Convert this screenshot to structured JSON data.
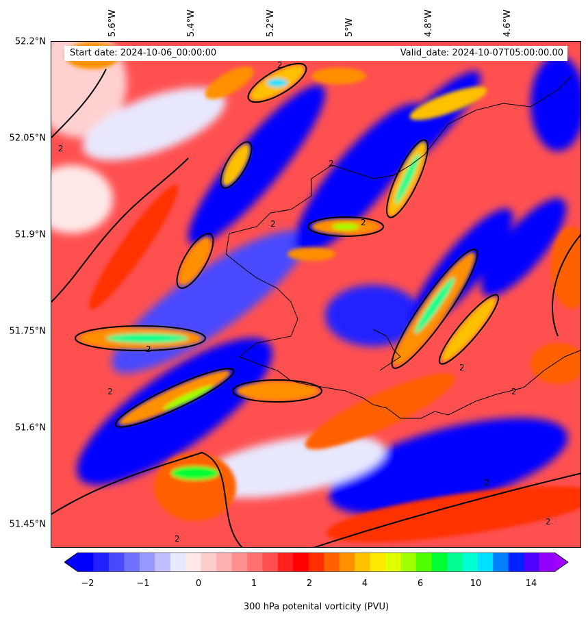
{
  "map": {
    "start_label": "Start date: 2024-10-06_00:00:00",
    "valid_label": "Valid_date: 2024-10-07T05:00:00.00",
    "latitude_labels": [
      "52.2°N",
      "52.05°N",
      "51.9°N",
      "51.75°N",
      "51.6°N",
      "51.45°N"
    ],
    "longitude_labels": [
      "5.6°W",
      "5.4°W",
      "5.2°W",
      "5°W",
      "4.8°W",
      "4.6°W"
    ],
    "contour_label": "2",
    "field": "300 hPa potential vorticity",
    "contour_level_pvu": 2
  },
  "colorbar": {
    "title": "300 hPa potenital vorticity (PVU)",
    "tick_labels": [
      "−2",
      "−1",
      "0",
      "1",
      "2",
      "4",
      "6",
      "10",
      "14"
    ],
    "colors": [
      "#0000ff",
      "#2020ff",
      "#4848ff",
      "#7070ff",
      "#9898ff",
      "#c0c0ff",
      "#e8e8ff",
      "#ffe8e8",
      "#ffcccc",
      "#ffb0b0",
      "#ff9090",
      "#ff7070",
      "#ff5050",
      "#ff2020",
      "#ff0000",
      "#ff3000",
      "#ff6000",
      "#ff9000",
      "#ffc000",
      "#ffe800",
      "#e0ff00",
      "#a0ff00",
      "#50ff00",
      "#00ff30",
      "#00ff90",
      "#00ffd0",
      "#00e0ff",
      "#0080ff",
      "#0020ff",
      "#5000ff",
      "#9000ff"
    ],
    "under_color": "#0000ff",
    "over_color": "#a000ff"
  }
}
